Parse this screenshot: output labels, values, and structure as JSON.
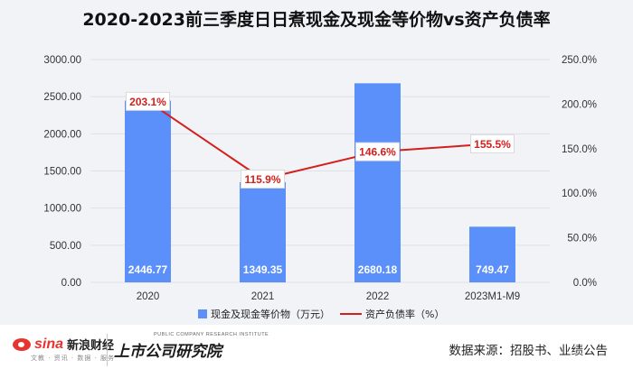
{
  "chart_data": {
    "type": "bar+line",
    "title": "2020-2023前三季度日日煮现金及现金等价物vs资产负债率",
    "categories": [
      "2020",
      "2021",
      "2022",
      "2023M1-M9"
    ],
    "series": [
      {
        "name": "现金及现金等价物（万元）",
        "type": "bar",
        "axis": "left",
        "color": "#5b8ff9",
        "values": [
          2446.77,
          1349.35,
          2680.18,
          749.47
        ],
        "labels": [
          "2446.77",
          "1349.35",
          "2680.18",
          "749.47"
        ]
      },
      {
        "name": "资产负债率（%）",
        "type": "line",
        "axis": "right",
        "color": "#d2201c",
        "values": [
          203.1,
          115.9,
          146.6,
          155.5
        ],
        "labels": [
          "203.1%",
          "115.9%",
          "146.6%",
          "155.5%"
        ]
      }
    ],
    "y_left": {
      "min": 0,
      "max": 3000,
      "step": 500,
      "ticks": [
        "0.00",
        "500.00",
        "1000.00",
        "1500.00",
        "2000.00",
        "2500.00",
        "3000.00"
      ]
    },
    "y_right": {
      "min": 0,
      "max": 250,
      "step": 50,
      "ticks": [
        "0.0%",
        "50.0%",
        "100.0%",
        "150.0%",
        "200.0%",
        "250.0%"
      ]
    },
    "grid": true,
    "legend": "bottom"
  },
  "footer": {
    "sina_brand": "sina",
    "sina_name": "新浪财经",
    "sina_sub": "文教 · 资讯 · 数据 · 服务",
    "research_en": "PUBLIC COMPANY RESEARCH INSTITUTE",
    "research_cn": "上市公司研究院",
    "source": "数据来源：招股书、业绩公告"
  }
}
